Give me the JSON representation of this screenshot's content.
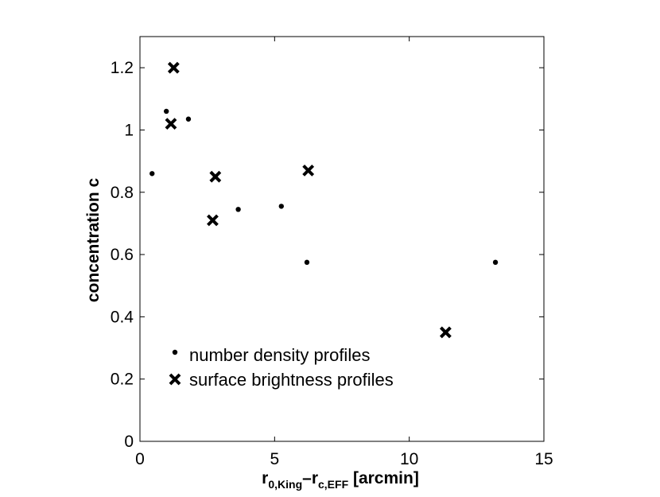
{
  "chart_data": {
    "type": "scatter",
    "xlabel": {
      "main": "r",
      "sub1": "0,King",
      "mid": "–r",
      "sub2": "c,EFF",
      "unit": " [arcmin]"
    },
    "ylabel": "concentration c",
    "xlim": [
      0,
      15
    ],
    "ylim": [
      0,
      1.3
    ],
    "xticks": [
      0,
      5,
      10,
      15
    ],
    "yticks": [
      0,
      0.2,
      0.4,
      0.6,
      0.8,
      1,
      1.2
    ],
    "ytick_labels": [
      "0",
      "0.2",
      "0.4",
      "0.6",
      "0.8",
      "1",
      "1.2"
    ],
    "grid": false,
    "legend_position": "bottom-left",
    "series": [
      {
        "name": "number density profiles",
        "marker": "dot",
        "color": "#000000",
        "points": [
          {
            "x": 0.45,
            "y": 0.86
          },
          {
            "x": 0.98,
            "y": 1.06
          },
          {
            "x": 1.8,
            "y": 1.035
          },
          {
            "x": 3.65,
            "y": 0.745
          },
          {
            "x": 5.25,
            "y": 0.755
          },
          {
            "x": 6.2,
            "y": 0.575
          },
          {
            "x": 13.2,
            "y": 0.575
          }
        ]
      },
      {
        "name": "surface brightness profiles",
        "marker": "x",
        "color": "#000000",
        "points": [
          {
            "x": 1.25,
            "y": 1.2
          },
          {
            "x": 1.15,
            "y": 1.02
          },
          {
            "x": 2.8,
            "y": 0.85
          },
          {
            "x": 2.7,
            "y": 0.71
          },
          {
            "x": 6.25,
            "y": 0.87
          },
          {
            "x": 11.35,
            "y": 0.35
          }
        ]
      }
    ]
  }
}
